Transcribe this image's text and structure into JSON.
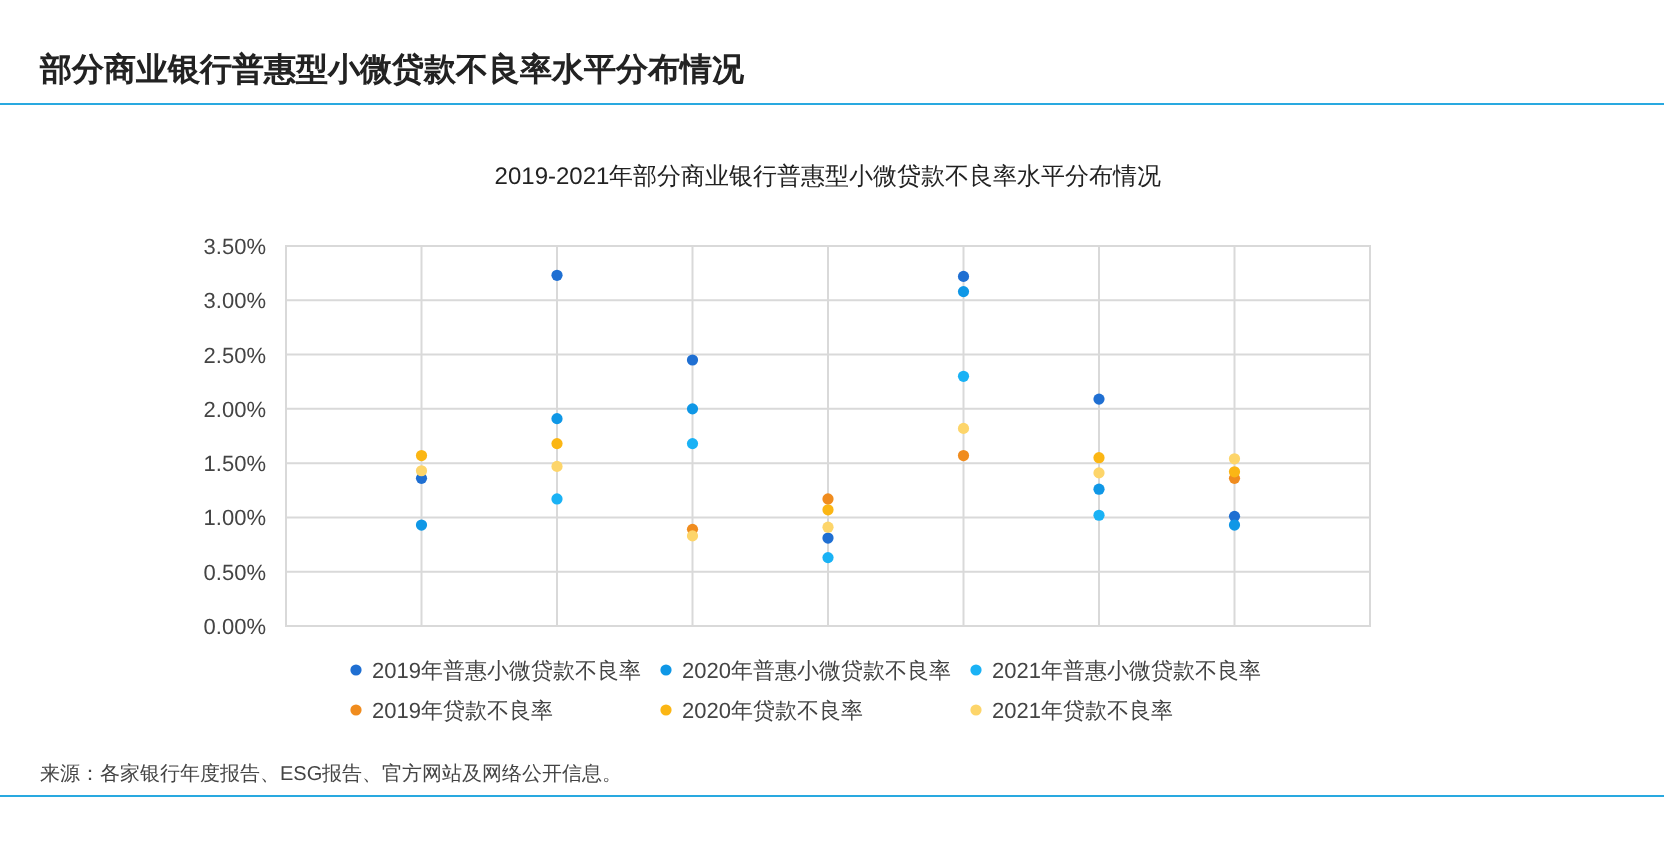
{
  "chart_data": {
    "type": "scatter",
    "title": "部分商业银行普惠型小微贷款不良率水平分布情况",
    "subtitle": "2019-2021年部分商业银行普惠型小微贷款不良率水平分布情况",
    "categories": [
      null,
      null,
      null,
      null,
      null,
      null,
      null
    ],
    "series": [
      {
        "name": "2019年普惠小微贷款不良率",
        "color": "#1f6fd2",
        "values": [
          1.36,
          3.23,
          2.45,
          0.81,
          3.22,
          2.09,
          1.01
        ]
      },
      {
        "name": "2020年普惠小微贷款不良率",
        "color": "#0f97e6",
        "values": [
          0.93,
          1.91,
          2.0,
          null,
          3.08,
          1.26,
          0.93
        ]
      },
      {
        "name": "2021年普惠小微贷款不良率",
        "color": "#1ab2f5",
        "values": [
          null,
          1.17,
          1.68,
          0.63,
          2.3,
          1.02,
          null
        ]
      },
      {
        "name": "2019年贷款不良率",
        "color": "#f08c1e",
        "values": [
          null,
          null,
          0.89,
          1.17,
          1.57,
          null,
          1.36
        ]
      },
      {
        "name": "2020年贷款不良率",
        "color": "#fbb614",
        "values": [
          1.57,
          1.68,
          null,
          1.07,
          null,
          1.55,
          1.42
        ]
      },
      {
        "name": "2021年贷款不良率",
        "color": "#fdd56a",
        "values": [
          1.43,
          1.47,
          0.83,
          0.91,
          1.82,
          1.41,
          1.54
        ]
      }
    ],
    "ylim": [
      0,
      3.5
    ],
    "yticks": [
      {
        "value": 0,
        "label": "0.00%"
      },
      {
        "value": 0.5,
        "label": "0.50%"
      },
      {
        "value": 1,
        "label": "1.00%"
      },
      {
        "value": 1.5,
        "label": "1.50%"
      },
      {
        "value": 2,
        "label": "2.00%"
      },
      {
        "value": 2.5,
        "label": "2.50%"
      },
      {
        "value": 3,
        "label": "3.00%"
      },
      {
        "value": 3.5,
        "label": "3.50%"
      }
    ],
    "grid": true,
    "legend": "bottom",
    "marker": "circle",
    "annotations": [
      "来源：各家银行年度报告、ESG报告、官方网站及网络公开信息。"
    ]
  }
}
